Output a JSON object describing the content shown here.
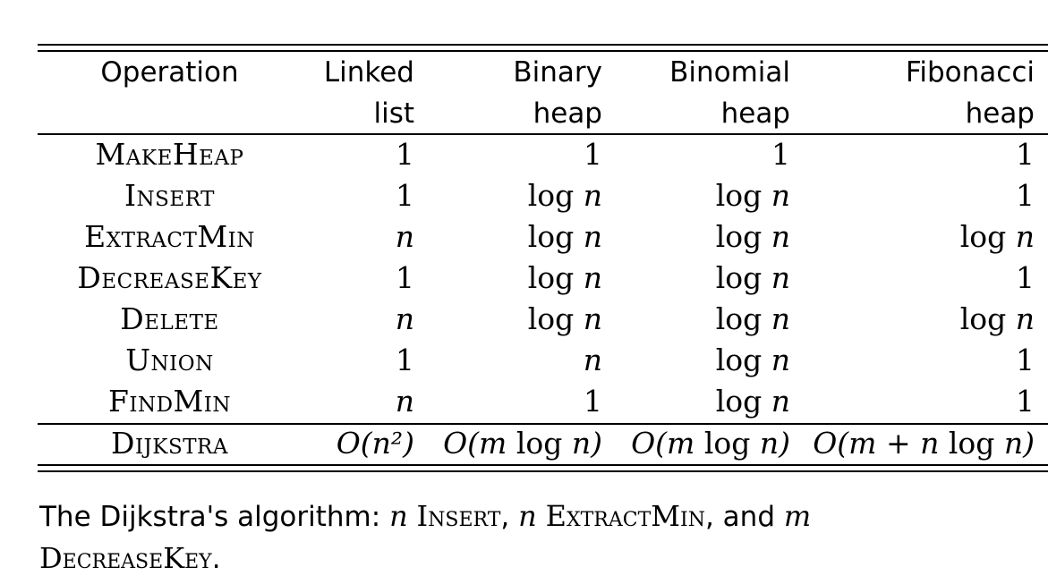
{
  "table": {
    "headers": [
      {
        "line1": "Operation",
        "line2": ""
      },
      {
        "line1": "Linked",
        "line2": "list"
      },
      {
        "line1": "Binary",
        "line2": "heap"
      },
      {
        "line1": "Binomial",
        "line2": "heap"
      },
      {
        "line1": "Fibonacci",
        "line2": "heap"
      }
    ],
    "rows": [
      {
        "op": "MakeHeap",
        "cells": [
          "1",
          "1",
          "1",
          "1"
        ]
      },
      {
        "op": "Insert",
        "cells": [
          "1",
          "log n",
          "log n",
          "1"
        ]
      },
      {
        "op": "ExtractMin",
        "cells": [
          "n",
          "log n",
          "log n",
          "log n"
        ]
      },
      {
        "op": "DecreaseKey",
        "cells": [
          "1",
          "log n",
          "log n",
          "1"
        ]
      },
      {
        "op": "Delete",
        "cells": [
          "n",
          "log n",
          "log n",
          "log n"
        ]
      },
      {
        "op": "Union",
        "cells": [
          "1",
          "n",
          "log n",
          "1"
        ]
      },
      {
        "op": "FindMin",
        "cells": [
          "n",
          "1",
          "log n",
          "1"
        ]
      }
    ],
    "summary_row": {
      "op": "Dijkstra",
      "cells": [
        "O(n²)",
        "O(m log n)",
        "O(m log n)",
        "O(m + n log n)"
      ]
    }
  },
  "caption": {
    "prefix": "The Dijkstra's algorithm:",
    "var_n1": "n",
    "op_insert": "Insert",
    "comma1": ",",
    "var_n2": "n",
    "op_extract": "ExtractMin",
    "comma_and": ", and",
    "var_m": "m",
    "op_decrease": "DecreaseKey",
    "period": "."
  }
}
